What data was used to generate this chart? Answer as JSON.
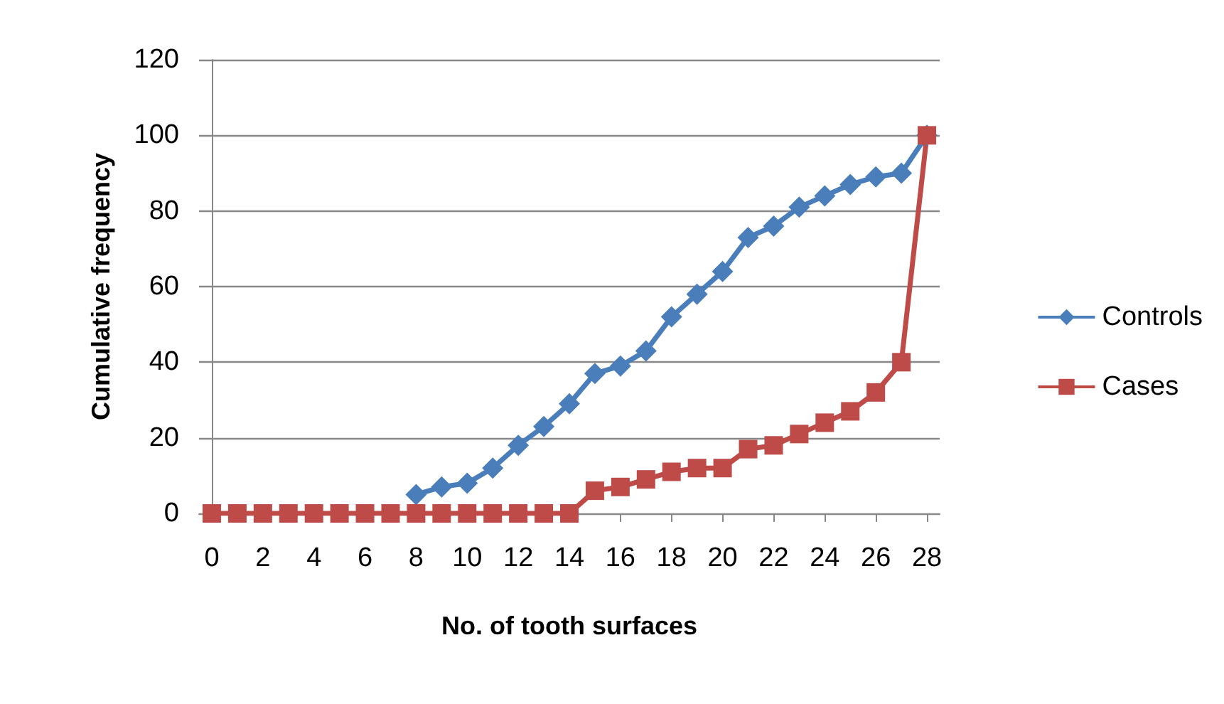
{
  "chart_data": {
    "type": "line",
    "xlabel": "No. of tooth surfaces",
    "ylabel": "Cumulative frequency",
    "x": [
      0,
      1,
      2,
      3,
      4,
      5,
      6,
      7,
      8,
      9,
      10,
      11,
      12,
      13,
      14,
      15,
      16,
      17,
      18,
      19,
      20,
      21,
      22,
      23,
      24,
      25,
      26,
      27,
      28
    ],
    "series": [
      {
        "name": "Controls",
        "color": "#4a7ebb",
        "marker": "diamond",
        "values": [
          null,
          null,
          null,
          null,
          null,
          null,
          null,
          null,
          5,
          7,
          8,
          12,
          18,
          23,
          29,
          37,
          39,
          43,
          52,
          58,
          64,
          73,
          76,
          81,
          84,
          87,
          89,
          90,
          100
        ]
      },
      {
        "name": "Cases",
        "color": "#be4b48",
        "marker": "square",
        "values": [
          0,
          0,
          0,
          0,
          0,
          0,
          0,
          0,
          0,
          0,
          0,
          0,
          0,
          0,
          0,
          6,
          7,
          9,
          11,
          12,
          12,
          17,
          18,
          21,
          24,
          27,
          32,
          40,
          100
        ]
      }
    ],
    "xlim": [
      -0.5,
      28.5
    ],
    "xticks": [
      0,
      2,
      4,
      6,
      8,
      10,
      12,
      14,
      16,
      18,
      20,
      22,
      24,
      26,
      28
    ],
    "ylim": [
      0,
      120
    ],
    "yticks": [
      0,
      20,
      40,
      60,
      80,
      100,
      120
    ],
    "grid": "y",
    "legend": "right"
  }
}
